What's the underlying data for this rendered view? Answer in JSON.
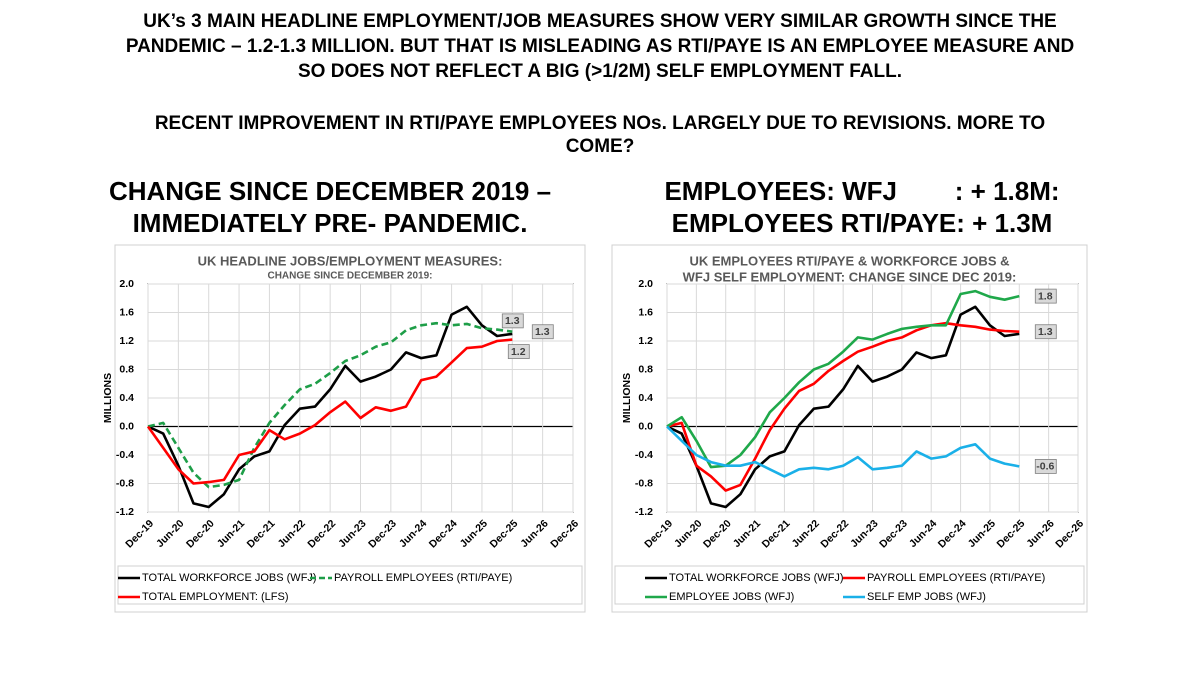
{
  "headline": [
    "UK’s 3 MAIN HEADLINE EMPLOYMENT/JOB MEASURES SHOW VERY SIMILAR GROWTH SINCE THE",
    "PANDEMIC – 1.2-1.3 MILLION. BUT THAT IS MISLEADING AS RTI/PAYE IS AN EMPLOYEE MEASURE AND",
    "SO DOES NOT REFLECT A BIG (>1/2M) SELF EMPLOYMENT FALL."
  ],
  "subheadline": [
    "RECENT IMPROVEMENT IN RTI/PAYE EMPLOYEES NOs. LARGELY DUE TO REVISIONS. MORE TO",
    "COME?"
  ],
  "headings": [
    [
      "CHANGE SINCE DECEMBER 2019 –",
      "IMMEDIATELY PRE- PANDEMIC."
    ],
    [
      "EMPLOYEES: WFJ        : + 1.8M:",
      "EMPLOYEES RTI/PAYE: + 1.3M"
    ]
  ],
  "chart_data": [
    {
      "type": "line",
      "title": "UK HEADLINE JOBS/EMPLOYMENT MEASURES:",
      "subtitle": "CHANGE SINCE DECEMBER 2019:",
      "y_label": "MILLIONS",
      "grid": true,
      "x": [
        "2019-12",
        "2020-03",
        "2020-06",
        "2020-09",
        "2020-12",
        "2021-03",
        "2021-06",
        "2021-09",
        "2021-12",
        "2022-03",
        "2022-06",
        "2022-09",
        "2022-12",
        "2023-03",
        "2023-06",
        "2023-09",
        "2023-12",
        "2024-03",
        "2024-06",
        "2024-09",
        "2024-12",
        "2025-03",
        "2025-06",
        "2025-09",
        "2025-12"
      ],
      "xlim": [
        "2019-12",
        "2026-12"
      ],
      "xticks": [
        {
          "value": "2019-12",
          "label": "Dec-19"
        },
        {
          "value": "2020-06",
          "label": "Jun-20"
        },
        {
          "value": "2020-12",
          "label": "Dec-20"
        },
        {
          "value": "2021-06",
          "label": "Jun-21"
        },
        {
          "value": "2021-12",
          "label": "Dec-21"
        },
        {
          "value": "2022-06",
          "label": "Jun-22"
        },
        {
          "value": "2022-12",
          "label": "Dec-22"
        },
        {
          "value": "2023-06",
          "label": "Jun-23"
        },
        {
          "value": "2023-12",
          "label": "Dec-23"
        },
        {
          "value": "2024-06",
          "label": "Jun-24"
        },
        {
          "value": "2024-12",
          "label": "Dec-24"
        },
        {
          "value": "2025-06",
          "label": "Jun-25"
        },
        {
          "value": "2025-12",
          "label": "Dec-25"
        },
        {
          "value": "2026-06",
          "label": "Jun-26"
        },
        {
          "value": "2026-12",
          "label": "Dec-26"
        }
      ],
      "ylim": [
        -1.2,
        2.0
      ],
      "yticks": [
        -1.2,
        -0.8,
        -0.4,
        {
          "value": 0,
          "label": "0.0"
        },
        0.4,
        0.8,
        1.2,
        1.6,
        {
          "value": 2.0,
          "label": "2.0"
        }
      ],
      "series": [
        {
          "name": "TOTAL WORKFORCE JOBS (WFJ)",
          "color": "#000000",
          "dashed": false,
          "values": [
            0,
            -0.1,
            -0.55,
            -1.08,
            -1.13,
            -0.95,
            -0.6,
            -0.42,
            -0.35,
            0.02,
            0.25,
            0.28,
            0.52,
            0.85,
            0.63,
            0.7,
            0.8,
            1.04,
            0.96,
            1.0,
            1.57,
            1.68,
            1.42,
            1.27,
            1.3
          ],
          "value_labels": [
            null,
            null,
            null,
            null,
            null,
            null,
            null,
            null,
            null,
            null,
            null,
            null,
            null,
            null,
            null,
            null,
            null,
            null,
            null,
            null,
            null,
            null,
            null,
            null,
            "1.3"
          ]
        },
        {
          "name": "PAYROLL EMPLOYEES (RTI/PAYE)",
          "color": "#1e9e48",
          "dashed": true,
          "values": [
            0,
            0.05,
            -0.3,
            -0.65,
            -0.85,
            -0.82,
            -0.75,
            -0.3,
            0.05,
            0.3,
            0.52,
            0.6,
            0.75,
            0.92,
            1.0,
            1.12,
            1.18,
            1.35,
            1.42,
            1.45,
            1.42,
            1.44,
            1.38,
            1.36,
            1.33
          ],
          "value_labels": [
            null,
            null,
            null,
            null,
            null,
            null,
            null,
            null,
            null,
            null,
            null,
            null,
            null,
            null,
            null,
            null,
            null,
            null,
            null,
            null,
            null,
            null,
            null,
            null,
            "1.3"
          ]
        },
        {
          "name": "TOTAL EMPLOYMENT: (LFS)",
          "color": "#ff0000",
          "dashed": false,
          "values": [
            0,
            -0.3,
            -0.6,
            -0.8,
            -0.78,
            -0.75,
            -0.4,
            -0.35,
            -0.05,
            -0.18,
            -0.1,
            0.02,
            0.2,
            0.35,
            0.12,
            0.27,
            0.22,
            0.28,
            0.65,
            0.7,
            0.9,
            1.1,
            1.12,
            1.2,
            1.22
          ],
          "value_labels": [
            null,
            null,
            null,
            null,
            null,
            null,
            null,
            null,
            null,
            null,
            null,
            null,
            null,
            null,
            null,
            null,
            null,
            null,
            null,
            null,
            null,
            null,
            null,
            null,
            "1.2"
          ]
        }
      ]
    },
    {
      "type": "line",
      "title": [
        "UK EMPLOYEES RTI/PAYE & WORKFORCE JOBS &",
        "WFJ SELF EMPLOYMENT: CHANGE SINCE DEC 2019:"
      ],
      "y_label": "MILLIONS",
      "grid": true,
      "x": [
        "2019-12",
        "2020-03",
        "2020-06",
        "2020-09",
        "2020-12",
        "2021-03",
        "2021-06",
        "2021-09",
        "2021-12",
        "2022-03",
        "2022-06",
        "2022-09",
        "2022-12",
        "2023-03",
        "2023-06",
        "2023-09",
        "2023-12",
        "2024-03",
        "2024-06",
        "2024-09",
        "2024-12",
        "2025-03",
        "2025-06",
        "2025-09",
        "2025-12"
      ],
      "xlim": [
        "2019-12",
        "2026-12"
      ],
      "xticks": [
        {
          "value": "2019-12",
          "label": "Dec-19"
        },
        {
          "value": "2020-06",
          "label": "Jun-20"
        },
        {
          "value": "2020-12",
          "label": "Dec-20"
        },
        {
          "value": "2021-06",
          "label": "Jun-21"
        },
        {
          "value": "2021-12",
          "label": "Dec-21"
        },
        {
          "value": "2022-06",
          "label": "Jun-22"
        },
        {
          "value": "2022-12",
          "label": "Dec-22"
        },
        {
          "value": "2023-06",
          "label": "Jun-23"
        },
        {
          "value": "2023-12",
          "label": "Dec-23"
        },
        {
          "value": "2024-06",
          "label": "Jun-24"
        },
        {
          "value": "2024-12",
          "label": "Dec-24"
        },
        {
          "value": "2025-06",
          "label": "Jun-25"
        },
        {
          "value": "2025-12",
          "label": "Dec-25"
        },
        {
          "value": "2026-06",
          "label": "Jun-26"
        },
        {
          "value": "2026-12",
          "label": "Dec-26"
        }
      ],
      "ylim": [
        -1.2,
        2.0
      ],
      "yticks": [
        -1.2,
        -0.8,
        -0.4,
        {
          "value": 0,
          "label": "0.0"
        },
        0.4,
        0.8,
        1.2,
        1.6,
        {
          "value": 2.0,
          "label": "2.0"
        }
      ],
      "series": [
        {
          "name": "TOTAL WORKFORCE JOBS (WFJ)",
          "color": "#000000",
          "dashed": false,
          "values": [
            0,
            -0.1,
            -0.55,
            -1.08,
            -1.13,
            -0.95,
            -0.6,
            -0.42,
            -0.35,
            0.02,
            0.25,
            0.28,
            0.52,
            0.85,
            0.63,
            0.7,
            0.8,
            1.04,
            0.96,
            1.0,
            1.57,
            1.68,
            1.42,
            1.27,
            1.3
          ]
        },
        {
          "name": "PAYROLL EMPLOYEES (RTI/PAYE)",
          "color": "#ff0000",
          "dashed": false,
          "values": [
            0,
            0.05,
            -0.55,
            -0.7,
            -0.9,
            -0.82,
            -0.45,
            -0.05,
            0.25,
            0.5,
            0.6,
            0.78,
            0.92,
            1.05,
            1.12,
            1.2,
            1.25,
            1.35,
            1.42,
            1.45,
            1.42,
            1.4,
            1.36,
            1.34,
            1.33
          ],
          "value_labels": [
            null,
            null,
            null,
            null,
            null,
            null,
            null,
            null,
            null,
            null,
            null,
            null,
            null,
            null,
            null,
            null,
            null,
            null,
            null,
            null,
            null,
            null,
            null,
            null,
            "1.3"
          ]
        },
        {
          "name": "EMPLOYEE JOBS (WFJ)",
          "color": "#1fa84a",
          "dashed": false,
          "values": [
            0,
            0.13,
            -0.2,
            -0.57,
            -0.55,
            -0.4,
            -0.15,
            0.2,
            0.4,
            0.62,
            0.8,
            0.88,
            1.05,
            1.25,
            1.22,
            1.3,
            1.37,
            1.4,
            1.42,
            1.42,
            1.86,
            1.9,
            1.82,
            1.78,
            1.83
          ],
          "value_labels": [
            null,
            null,
            null,
            null,
            null,
            null,
            null,
            null,
            null,
            null,
            null,
            null,
            null,
            null,
            null,
            null,
            null,
            null,
            null,
            null,
            null,
            null,
            null,
            null,
            "1.8"
          ]
        },
        {
          "name": "SELF EMP JOBS (WFJ)",
          "color": "#1ab0e8",
          "dashed": false,
          "values": [
            0,
            -0.2,
            -0.4,
            -0.5,
            -0.55,
            -0.55,
            -0.5,
            -0.6,
            -0.7,
            -0.6,
            -0.58,
            -0.6,
            -0.55,
            -0.43,
            -0.6,
            -0.58,
            -0.55,
            -0.35,
            -0.45,
            -0.42,
            -0.3,
            -0.25,
            -0.45,
            -0.52,
            -0.56
          ],
          "value_labels": [
            null,
            null,
            null,
            null,
            null,
            null,
            null,
            null,
            null,
            null,
            null,
            null,
            null,
            null,
            null,
            null,
            null,
            null,
            null,
            null,
            null,
            null,
            null,
            null,
            "-0.6"
          ]
        }
      ]
    }
  ]
}
